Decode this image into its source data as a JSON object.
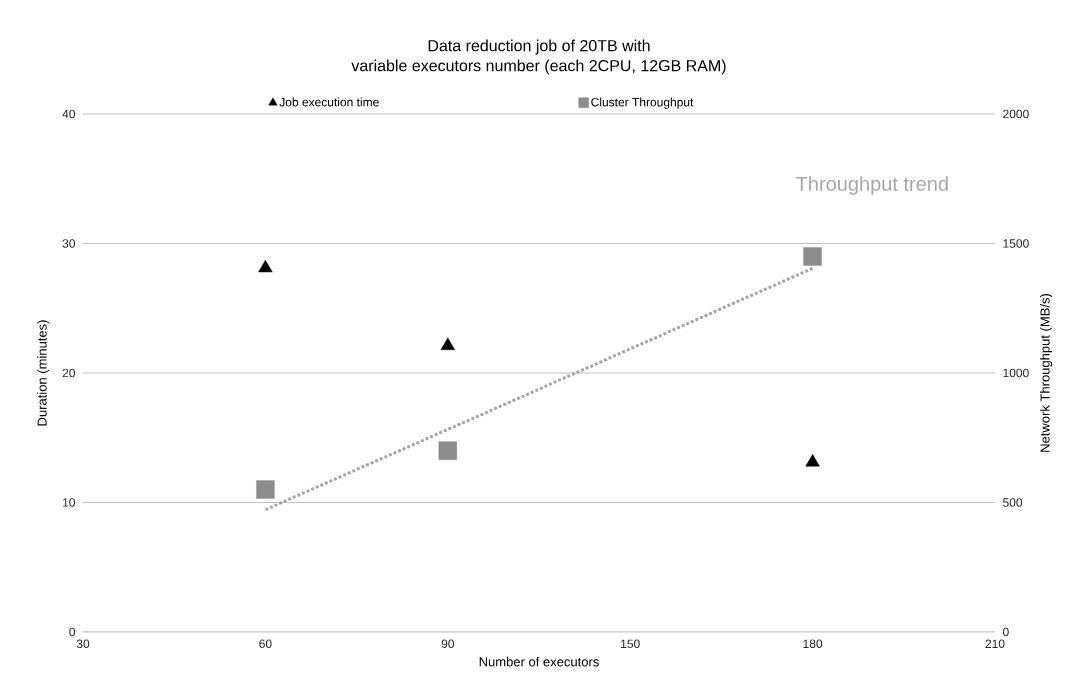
{
  "chart_data": {
    "type": "scatter",
    "title": "Data reduction job of 20TB with\nvariable executors number (each 2CPU, 12GB RAM)",
    "xlabel": "Number of executors",
    "ylabel": "Duration (minutes)",
    "y2label": "Network Throughput (MB/s)",
    "categories": [
      "30",
      "60",
      "90",
      "150",
      "180",
      "210"
    ],
    "series": [
      {
        "name": "Job execution time",
        "color": "#000000",
        "marker": "triangle",
        "values": [
          null,
          28.1,
          22.1,
          null,
          13.1,
          null
        ]
      },
      {
        "name": "Cluster Throughput",
        "color": "#8c8c8c",
        "marker": "square",
        "axis": "y2",
        "values": [
          null,
          550,
          700,
          null,
          1450,
          null
        ]
      },
      {
        "name": "Throughput trend",
        "type": "line",
        "line_style": "dotted",
        "color": "#a6a6a6",
        "axis": "y2",
        "values": [
          null,
          472,
          782,
          1093,
          1404,
          null
        ]
      }
    ],
    "ylim": [
      0,
      40
    ],
    "yticks": [
      0,
      10,
      20,
      30,
      40
    ],
    "y2lim": [
      0,
      2000
    ],
    "y2ticks": [
      0,
      500,
      1000,
      1500,
      2000
    ],
    "grid": "y",
    "legend": "top"
  }
}
